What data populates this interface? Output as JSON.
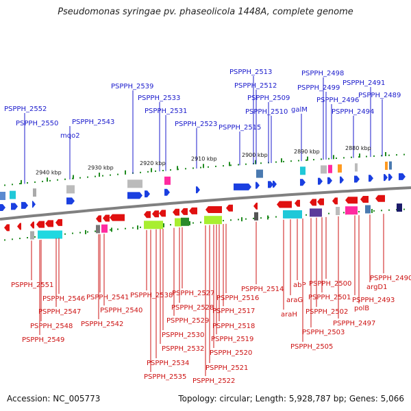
{
  "title": "Pseudomonas syringae pv. phaseolicola 1448A, complete genome",
  "footer": {
    "accession": "Accession: NC_005773",
    "topology": "Topology: circular; Length: 5,928,787 bp; Genes: 5,066"
  },
  "colors": {
    "forward_label": "#1a1acc",
    "reverse_label": "#cc1111",
    "backbone": "#808080",
    "forward_gene": "#1a3fe0",
    "reverse_gene": "#e01010",
    "tick": "#1f8a1f"
  },
  "scale_ticks": [
    "2940 kbp",
    "2930 kbp",
    "2920 kbp",
    "2910 kbp",
    "2900 kbp",
    "2890 kbp",
    "2880 kbp"
  ],
  "forward_labels": [
    "PSPPH_2552",
    "PSPPH_2550",
    "mqo2",
    "PSPPH_2543",
    "PSPPH_2539",
    "PSPPH_2533",
    "PSPPH_2531",
    "PSPPH_2523",
    "PSPPH_2515",
    "PSPPH_2513",
    "PSPPH_2512",
    "PSPPH_2509",
    "PSPPH_2510",
    "galM",
    "PSPPH_2498",
    "PSPPH_2499",
    "PSPPH_2496",
    "PSPPH_2494",
    "PSPPH_2491",
    "PSPPH_2489"
  ],
  "reverse_labels": [
    "PSPPH_2551",
    "PSPPH_2546",
    "PSPPH_2547",
    "PSPPH_2548",
    "PSPPH_2549",
    "PSPPH_2541",
    "PSPPH_2540",
    "PSPPH_2542",
    "PSPPH_2538",
    "PSPPH_2527",
    "PSPPH_2528",
    "PSPPH_2529",
    "PSPPH_2530",
    "PSPPH_2532",
    "PSPPH_2534",
    "PSPPH_2535",
    "PSPPH_2516",
    "PSPPH_2517",
    "PSPPH_2518",
    "PSPPH_2519",
    "PSPPH_2520",
    "PSPPH_2521",
    "PSPPH_2522",
    "PSPPH_2514",
    "araG",
    "araH",
    "abP",
    "PSPPH_2500",
    "PSPPH_2501",
    "PSPPH_2502",
    "PSPPH_2503",
    "PSPPH_2505",
    "PSPPH_2497",
    "polB",
    "PSPPH_2493",
    "argD1",
    "PSPPH_2490"
  ]
}
